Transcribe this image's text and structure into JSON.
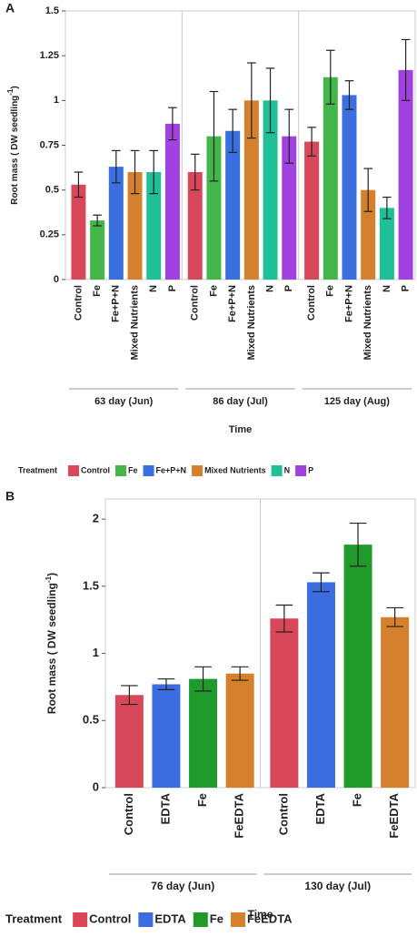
{
  "chart_data": [
    {
      "type": "bar",
      "panel_label": "A",
      "ylabel": "Root mass ( DW seedling",
      "ylabel_sup": "-1",
      "ylabel_end": ")",
      "xlabel": "Time",
      "legend_title": "Treatment",
      "categories": [
        "63 day (Jun)",
        "86 day (Jul)",
        "125 day (Aug)"
      ],
      "ylim": [
        0,
        1.5
      ],
      "yticks": [
        0,
        0.25,
        0.5,
        0.75,
        1,
        1.25,
        1.5
      ],
      "series": [
        {
          "name": "Control",
          "color": "#d9475a",
          "values": [
            0.53,
            0.6,
            0.77
          ],
          "errors": [
            0.07,
            0.1,
            0.08
          ]
        },
        {
          "name": "Fe",
          "color": "#44b549",
          "values": [
            0.33,
            0.8,
            1.13
          ],
          "errors": [
            0.03,
            0.25,
            0.15
          ]
        },
        {
          "name": "Fe+P+N",
          "color": "#3a6fe0",
          "values": [
            0.63,
            0.83,
            1.03
          ],
          "errors": [
            0.09,
            0.12,
            0.08
          ]
        },
        {
          "name": "Mixed Nutrients",
          "color": "#d4802c",
          "values": [
            0.6,
            1.0,
            0.5
          ],
          "errors": [
            0.12,
            0.21,
            0.12
          ]
        },
        {
          "name": "N",
          "color": "#1fbf98",
          "values": [
            0.6,
            1.0,
            0.4
          ],
          "errors": [
            0.12,
            0.18,
            0.06
          ]
        },
        {
          "name": "P",
          "color": "#a142e0",
          "values": [
            0.87,
            0.8,
            1.17
          ],
          "errors": [
            0.09,
            0.15,
            0.17
          ]
        }
      ]
    },
    {
      "type": "bar",
      "panel_label": "B",
      "ylabel": "Root mass ( DW seedling",
      "ylabel_sup": "-1",
      "ylabel_end": ")",
      "xlabel": "Time",
      "legend_title": "Treatment",
      "categories": [
        "76 day (Jun)",
        "130 day (Jul)"
      ],
      "ylim": [
        0,
        2.15
      ],
      "yticks": [
        0,
        0.5,
        1,
        1.5,
        2
      ],
      "series": [
        {
          "name": "Control",
          "color": "#d9475a",
          "values": [
            0.69,
            1.26
          ],
          "errors": [
            0.07,
            0.1
          ]
        },
        {
          "name": "EDTA",
          "color": "#3b6de0",
          "values": [
            0.77,
            1.53
          ],
          "errors": [
            0.04,
            0.07
          ]
        },
        {
          "name": "Fe",
          "color": "#1f9a2b",
          "values": [
            0.81,
            1.81
          ],
          "errors": [
            0.09,
            0.16
          ]
        },
        {
          "name": "FeEDTA",
          "color": "#d4802c",
          "values": [
            0.85,
            1.27
          ],
          "errors": [
            0.05,
            0.07
          ]
        }
      ]
    }
  ]
}
